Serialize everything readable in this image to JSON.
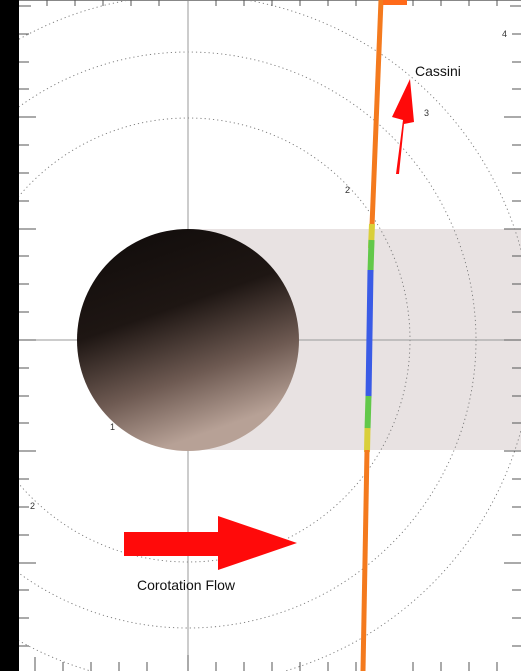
{
  "labels": {
    "spacecraft": "Cassini",
    "flow": "Corotation Flow"
  },
  "ring_labels": [
    "1",
    "2",
    "2",
    "3",
    "4"
  ],
  "colors": {
    "background": "#000000",
    "panel": "#ffffff",
    "wake": "#e8e2e2",
    "arrow": "#ff0a0a",
    "trajectory_outside": "#f47a1e",
    "trajectory_edge": "#f0c43a",
    "trajectory_inner": "#62c84a",
    "trajectory_core": "#3a5be6",
    "grid": "#9a9a9a",
    "ring": "#777777",
    "moon_dark": "#120e0c",
    "moon_light": "#a99488"
  },
  "icons": {
    "moon": "enceladus-disk-icon",
    "spacecraft_arrow": "up-arrow-icon",
    "flow_arrow": "right-arrow-icon"
  }
}
